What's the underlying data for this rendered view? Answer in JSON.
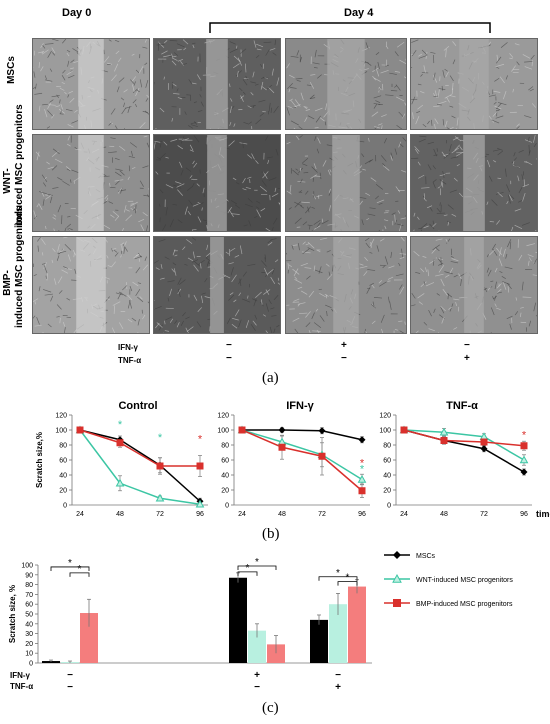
{
  "panel_a": {
    "day0_label": "Day 0",
    "day4_label": "Day 4",
    "rows": [
      "MSCs",
      "WNT-induced MSC progenitors",
      "BMP-induced MSC progenitors"
    ],
    "row_labels": {
      "r1": "MSCs",
      "r2a": "WNT-",
      "r2b": "induced MSC progenitors",
      "r3a": "BMP-",
      "r3b": "induced MSC progenitors"
    },
    "cond_labels": {
      "ifn": "IFN-γ",
      "tnf": "TNF-α"
    },
    "conds": {
      "c1": {
        "ifn": "−",
        "tnf": "−"
      },
      "c3": {
        "ifn": "+",
        "tnf": "−"
      },
      "c4": {
        "ifn": "−",
        "tnf": "+"
      }
    },
    "tag": "(a)"
  },
  "panel_b": {
    "tag": "(b)",
    "ylabel": "Scratch size,%",
    "xlabel": "time [h]",
    "star": "*"
  },
  "panel_c": {
    "tag": "(c)",
    "star": "*",
    "cond_labels": {
      "ifn": "IFN-γ",
      "tnf": "TNF-α"
    },
    "conds": [
      {
        "ifn": "−",
        "tnf": "−"
      },
      {
        "ifn": "+",
        "tnf": "−"
      },
      {
        "ifn": "−",
        "tnf": "+"
      }
    ]
  },
  "chart_data": [
    {
      "type": "line",
      "title": "Control",
      "x": [
        24,
        48,
        72,
        96
      ],
      "ylim": [
        0,
        120
      ],
      "yticks": [
        0,
        20,
        40,
        60,
        80,
        100,
        120
      ],
      "ylabel": "Scratch size,%",
      "series": [
        {
          "name": "MSCs",
          "values": [
            100,
            87,
            53,
            5
          ],
          "err": [
            3,
            5,
            10,
            4
          ],
          "color": "#000000",
          "marker": "diamond"
        },
        {
          "name": "WNT-induced MSC progenitors",
          "values": [
            100,
            29,
            9,
            1
          ],
          "err": [
            3,
            10,
            3,
            1
          ],
          "color": "#3cc6a4",
          "marker": "triangle"
        },
        {
          "name": "BMP-induced MSC progenitors",
          "values": [
            100,
            83,
            52,
            52
          ],
          "err": [
            3,
            6,
            11,
            14
          ],
          "color": "#d9302c",
          "marker": "square"
        }
      ],
      "stars": [
        {
          "x": 48,
          "y": 108,
          "color": "#3cc6a4"
        },
        {
          "x": 72,
          "y": 91,
          "color": "#3cc6a4"
        },
        {
          "x": 96,
          "y": 89,
          "color": "#d9302c"
        }
      ]
    },
    {
      "type": "line",
      "title": "IFN-γ",
      "x": [
        24,
        48,
        72,
        96
      ],
      "ylim": [
        0,
        120
      ],
      "yticks": [
        0,
        20,
        40,
        60,
        80,
        100,
        120
      ],
      "series": [
        {
          "name": "MSCs",
          "values": [
            100,
            100,
            99,
            87
          ],
          "err": [
            2,
            3,
            4,
            4
          ],
          "color": "#000000",
          "marker": "diamond"
        },
        {
          "name": "WNT-induced MSC progenitors",
          "values": [
            100,
            84,
            67,
            34
          ],
          "err": [
            2,
            8,
            16,
            7
          ],
          "color": "#3cc6a4",
          "marker": "triangle"
        },
        {
          "name": "BMP-induced MSC progenitors",
          "values": [
            100,
            77,
            65,
            19
          ],
          "err": [
            2,
            16,
            25,
            9
          ],
          "color": "#d9302c",
          "marker": "square"
        }
      ],
      "stars": [
        {
          "x": 96,
          "y": 57,
          "color": "#d9302c"
        },
        {
          "x": 96,
          "y": 49,
          "color": "#3cc6a4"
        }
      ]
    },
    {
      "type": "line",
      "title": "TNF-α",
      "x": [
        24,
        48,
        72,
        96
      ],
      "ylim": [
        0,
        120
      ],
      "yticks": [
        0,
        20,
        40,
        60,
        80,
        100,
        120
      ],
      "xlabel": "time [h]",
      "series": [
        {
          "name": "MSCs",
          "values": [
            100,
            86,
            75,
            44
          ],
          "err": [
            2,
            4,
            4,
            4
          ],
          "color": "#000000",
          "marker": "diamond"
        },
        {
          "name": "WNT-induced MSC progenitors",
          "values": [
            100,
            97,
            91,
            60
          ],
          "err": [
            2,
            5,
            4,
            7
          ],
          "color": "#3cc6a4",
          "marker": "triangle"
        },
        {
          "name": "BMP-induced MSC progenitors",
          "values": [
            100,
            86,
            84,
            79
          ],
          "err": [
            2,
            5,
            6,
            6
          ],
          "color": "#d9302c",
          "marker": "square"
        }
      ],
      "stars": [
        {
          "x": 96,
          "y": 94,
          "color": "#d9302c"
        }
      ]
    },
    {
      "type": "bar",
      "ylabel": "Scratch size, %",
      "ylim": [
        0,
        100
      ],
      "yticks": [
        0,
        10,
        20,
        30,
        40,
        50,
        60,
        70,
        80,
        90,
        100
      ],
      "groups": 3,
      "series": [
        {
          "name": "MSCs",
          "values": [
            2,
            87,
            44
          ],
          "err": [
            1,
            5,
            5
          ],
          "color": "#000000"
        },
        {
          "name": "WNT-induced MSC progenitors",
          "values": [
            1,
            33,
            60
          ],
          "err": [
            1,
            7,
            11
          ],
          "color": "#b8f0e0"
        },
        {
          "name": "BMP-induced MSC progenitors",
          "values": [
            51,
            19,
            78
          ],
          "err": [
            14,
            9,
            7
          ],
          "color": "#f47d7d"
        }
      ],
      "legend": [
        {
          "name": "MSCs",
          "color": "#000000",
          "marker": "diamond"
        },
        {
          "name": "WNT-induced MSC progenitors",
          "color": "#3cc6a4",
          "marker": "triangle"
        },
        {
          "name": "BMP-induced MSC progenitors",
          "color": "#d9302c",
          "marker": "square"
        }
      ]
    }
  ]
}
